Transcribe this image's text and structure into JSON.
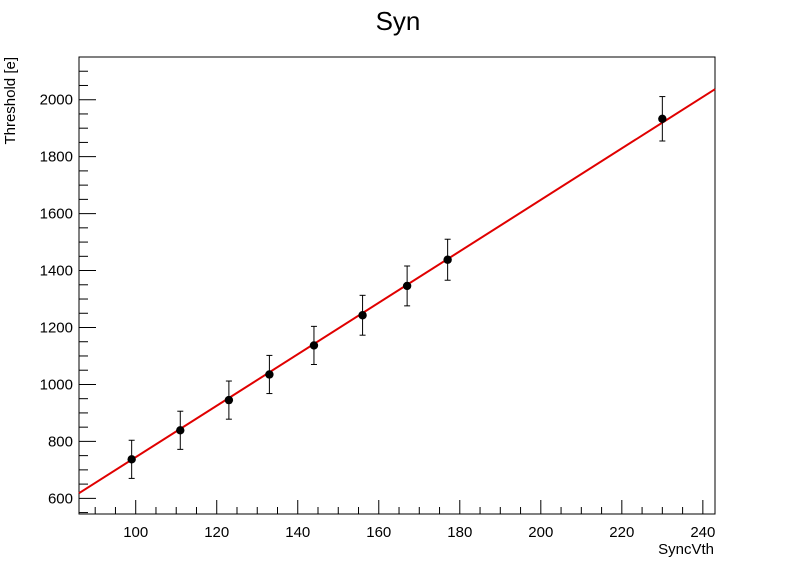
{
  "chart_data": {
    "type": "scatter",
    "title": "Syn",
    "xlabel": "SyncVth",
    "ylabel": "Threshold [e]",
    "xlim": [
      86,
      243
    ],
    "ylim": [
      545,
      2150
    ],
    "grid": false,
    "x_ticks": [
      100,
      120,
      140,
      160,
      180,
      200,
      220,
      240
    ],
    "y_ticks": [
      600,
      800,
      1000,
      1200,
      1400,
      1600,
      1800,
      2000
    ],
    "series": [
      {
        "x": [
          99,
          111,
          123,
          133,
          144,
          156,
          167,
          177,
          230
        ],
        "y": [
          737,
          839,
          945,
          1035,
          1137,
          1243,
          1346,
          1438,
          1933
        ],
        "yerr": [
          67,
          67,
          67,
          67,
          67,
          70,
          70,
          72,
          78
        ]
      }
    ],
    "fit": {
      "x": [
        86,
        243
      ],
      "y": [
        618,
        2037
      ]
    },
    "colors": {
      "points": "#000000",
      "fit": "#e00000"
    }
  }
}
